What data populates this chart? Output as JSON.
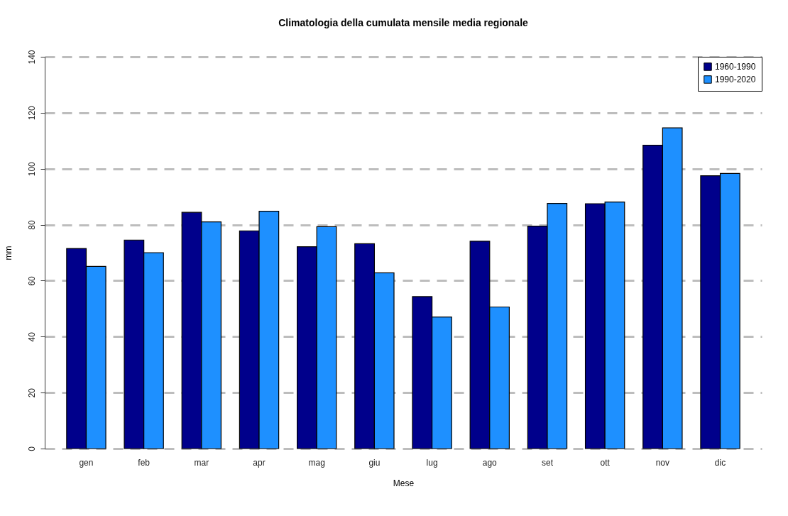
{
  "chart_data": {
    "type": "bar",
    "title": "Climatologia della cumulata mensile media regionale",
    "xlabel": "Mese",
    "ylabel": "mm",
    "categories": [
      "gen",
      "feb",
      "mar",
      "apr",
      "mag",
      "giu",
      "lug",
      "ago",
      "set",
      "ott",
      "nov",
      "dic"
    ],
    "series": [
      {
        "name": "1960-1990",
        "color": "#00008b",
        "values": [
          71.5,
          74.5,
          84.4,
          77.8,
          72.1,
          73.2,
          54.3,
          74.1,
          79.5,
          87.5,
          108.4,
          97.5
        ]
      },
      {
        "name": "1990-2020",
        "color": "#1e90ff",
        "values": [
          65.1,
          70.0,
          81.0,
          84.8,
          79.3,
          62.8,
          47.0,
          50.6,
          87.6,
          88.1,
          114.6,
          98.3
        ]
      }
    ],
    "ylim": [
      0,
      140
    ],
    "yticks": [
      0,
      20,
      40,
      60,
      80,
      100,
      120,
      140
    ],
    "grid": "y",
    "legend": "top right"
  }
}
